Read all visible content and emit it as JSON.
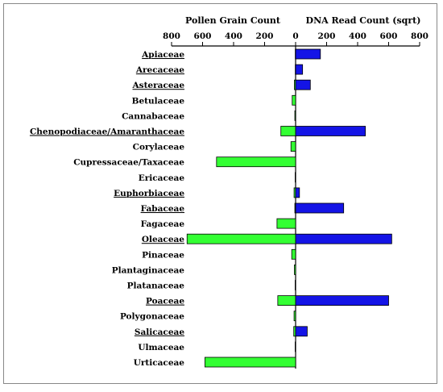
{
  "chart_data": {
    "type": "bar",
    "title_left": "Pollen Grain Count",
    "title_right": "DNA Read Count (sqrt)",
    "xlim_left": [
      800,
      0
    ],
    "xlim_right": [
      0,
      800
    ],
    "ticks_left": [
      "800",
      "600",
      "400",
      "200",
      "0"
    ],
    "ticks_right": [
      "0",
      "200",
      "400",
      "600",
      "800"
    ],
    "categories": [
      {
        "name": "Apiaceae",
        "underlined": true
      },
      {
        "name": "Arecaceae",
        "underlined": true
      },
      {
        "name": "Asteraceae",
        "underlined": true
      },
      {
        "name": "Betulaceae",
        "underlined": false
      },
      {
        "name": "Cannabaceae",
        "underlined": false
      },
      {
        "name": "Chenopodiaceae/Amaranthaceae",
        "underlined": true
      },
      {
        "name": "Corylaceae",
        "underlined": false
      },
      {
        "name": "Cupressaceae/Taxaceae",
        "underlined": false
      },
      {
        "name": "Ericaceae",
        "underlined": false
      },
      {
        "name": "Euphorbiaceae",
        "underlined": true
      },
      {
        "name": "Fabaceae",
        "underlined": true
      },
      {
        "name": "Fagaceae",
        "underlined": false
      },
      {
        "name": "Oleaceae",
        "underlined": true
      },
      {
        "name": "Pinaceae",
        "underlined": false
      },
      {
        "name": "Plantaginaceae",
        "underlined": false
      },
      {
        "name": "Platanaceae",
        "underlined": false
      },
      {
        "name": "Poaceae",
        "underlined": true
      },
      {
        "name": "Polygonaceae",
        "underlined": false
      },
      {
        "name": "Salicaceae",
        "underlined": true
      },
      {
        "name": "Ulmaceae",
        "underlined": false
      },
      {
        "name": "Urticaceae",
        "underlined": false
      }
    ],
    "series": [
      {
        "color": "#33ff33",
        "values": [
          2,
          2,
          8,
          22,
          5,
          95,
          30,
          510,
          3,
          10,
          5,
          120,
          700,
          25,
          8,
          3,
          115,
          10,
          12,
          3,
          585
        ]
      },
      {
        "color": "#1414e6",
        "values": [
          160,
          45,
          95,
          0,
          0,
          450,
          0,
          0,
          0,
          25,
          310,
          0,
          620,
          0,
          0,
          0,
          600,
          0,
          75,
          0,
          0
        ]
      }
    ],
    "bar_stroke": "#000000",
    "grid": false
  }
}
